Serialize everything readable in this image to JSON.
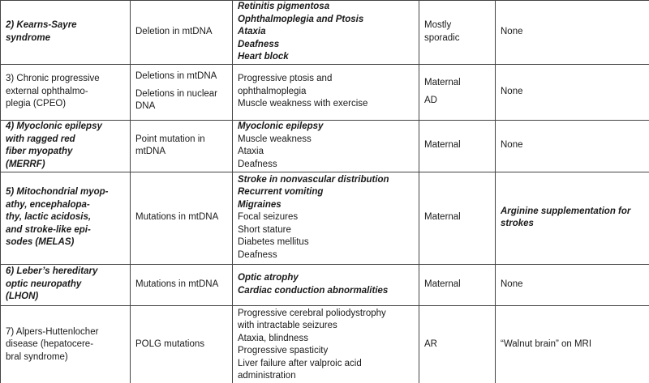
{
  "table": {
    "rows": [
      [
        [
          [
            "2) Kearns-Sayre",
            "syndrome"
          ]
        ],
        [
          [
            "Deletion in mtDNA"
          ]
        ],
        [
          [
            "Retinitis pigmentosa",
            "Ophthalmoplegia and Ptosis",
            "Ataxia",
            "Deafness",
            "Heart block"
          ]
        ],
        [
          [
            "Mostly",
            "sporadic"
          ]
        ],
        [
          [
            "None"
          ]
        ]
      ],
      [
        [
          [
            "3) Chronic progressive",
            "external ophthalmo-",
            "plegia (CPEO)"
          ]
        ],
        [
          [
            "Deletions in mtDNA"
          ],
          [
            "Deletions in nuclear",
            "DNA"
          ]
        ],
        [
          [
            "Progressive ptosis and",
            "ophthalmoplegia",
            "Muscle weakness with exercise"
          ]
        ],
        [
          [
            "Maternal"
          ],
          [
            "AD"
          ]
        ],
        [
          [
            "None"
          ]
        ]
      ],
      [
        [
          [
            "4) Myoclonic epilepsy",
            "with ragged red",
            "fiber myopathy",
            "(MERRF)"
          ]
        ],
        [
          [
            "Point mutation in",
            "mtDNA"
          ]
        ],
        [
          [
            "Myoclonic epilepsy",
            "Muscle weakness",
            "Ataxia",
            "Deafness"
          ]
        ],
        [
          [
            "Maternal"
          ]
        ],
        [
          [
            "None"
          ]
        ]
      ],
      [
        [
          [
            "5) Mitochondrial myop-",
            "athy, encephalopa-",
            "thy, lactic acidosis,",
            "and stroke-like epi-",
            "sodes (MELAS)"
          ]
        ],
        [
          [
            "Mutations in mtDNA"
          ]
        ],
        [
          [
            "Stroke in nonvascular distribution",
            "Recurrent vomiting",
            "Migraines",
            "Focal seizures",
            "Short stature",
            "Diabetes mellitus",
            "Deafness"
          ]
        ],
        [
          [
            "Maternal"
          ]
        ],
        [
          [
            "Arginine supplementation for",
            "strokes"
          ]
        ]
      ],
      [
        [
          [
            "6) Leber’s hereditary",
            "optic neuropathy",
            "(LHON)"
          ]
        ],
        [
          [
            "Mutations in mtDNA"
          ]
        ],
        [
          [
            "Optic atrophy",
            "Cardiac conduction abnormalities"
          ]
        ],
        [
          [
            "Maternal"
          ]
        ],
        [
          [
            "None"
          ]
        ]
      ],
      [
        [
          [
            "7) Alpers-Huttenlocher",
            "disease (hepatocere-",
            "bral syndrome)"
          ]
        ],
        [
          [
            "POLG mutations"
          ]
        ],
        [
          [
            "Progressive cerebral poliodystrophy",
            "with intractable seizures",
            "Ataxia, blindness",
            "Progressive spasticity",
            "Liver failure after valproic acid",
            "administration"
          ]
        ],
        [
          [
            "AR"
          ]
        ],
        [
          [
            "“Walnut brain” on MRI"
          ]
        ]
      ]
    ]
  }
}
